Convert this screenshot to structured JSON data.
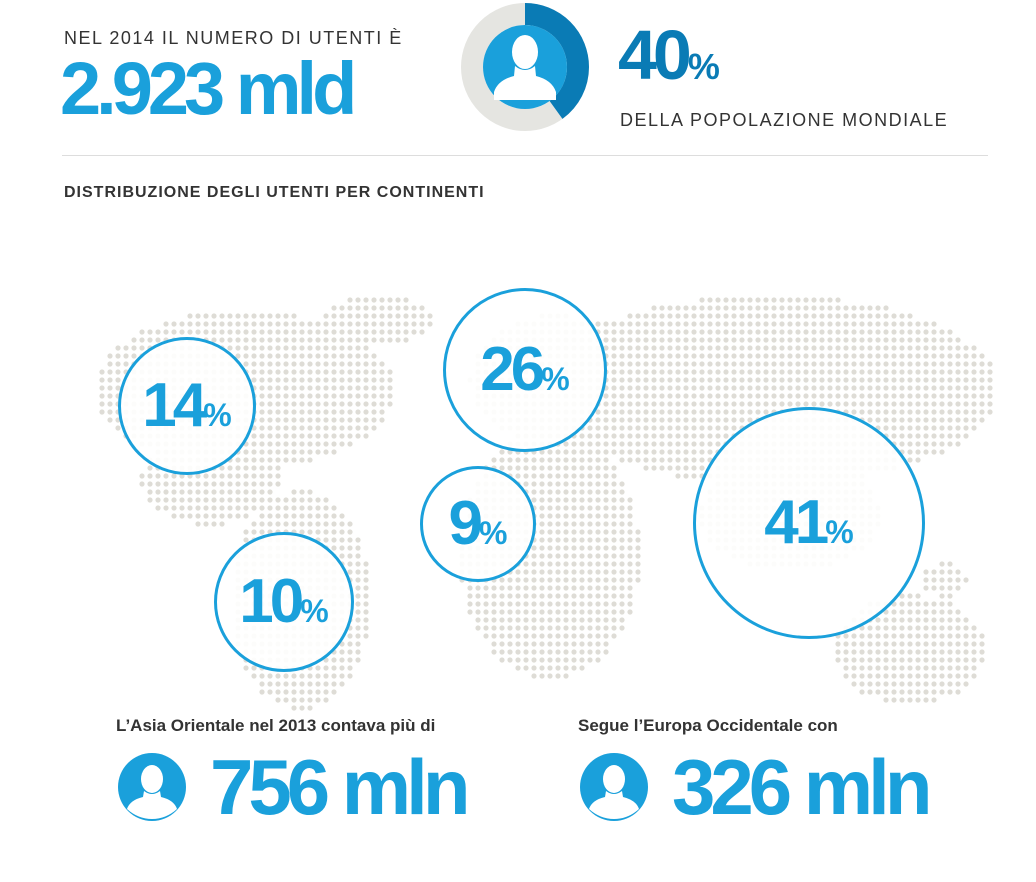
{
  "header": {
    "kicker": "NEL 2014 IL NUMERO DI UTENTI È",
    "users_total": "2.923 mld",
    "population_share": {
      "value": "40",
      "symbol": "%",
      "fraction": 0.4,
      "caption": "DELLA POPOLAZIONE MONDIALE"
    }
  },
  "section": {
    "title": "DISTRIBUZIONE DEGLI UTENTI PER CONTINENTI"
  },
  "continents": [
    {
      "value": "14",
      "symbol": "%"
    },
    {
      "value": "26",
      "symbol": "%"
    },
    {
      "value": "9",
      "symbol": "%"
    },
    {
      "value": "41",
      "symbol": "%"
    },
    {
      "value": "10",
      "symbol": "%"
    }
  ],
  "stats": [
    {
      "label": "L’Asia Orientale nel 2013 contava più di",
      "value": "756 mln"
    },
    {
      "label": "Segue l’Europa Occidentale con",
      "value": "326 mln"
    }
  ],
  "colors": {
    "accent": "#1aa0db",
    "accent_dark": "#0a7bb5",
    "track": "#e5e5e1",
    "map_dots": "#dedcd6",
    "text": "#333333"
  },
  "icons": {
    "person": "person-silhouette-icon"
  }
}
